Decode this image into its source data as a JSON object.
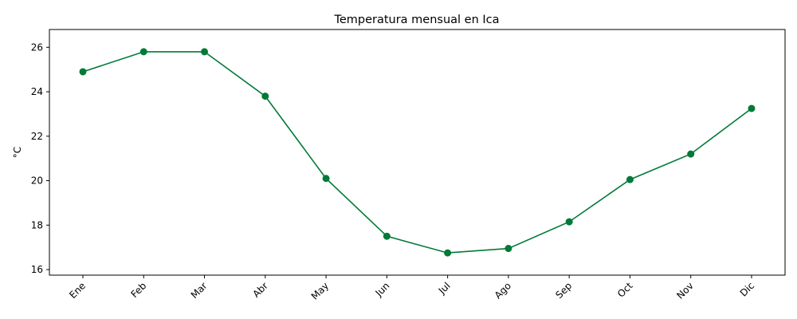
{
  "chart_data": {
    "type": "line",
    "title": "Temperatura mensual en Ica",
    "xlabel": "",
    "ylabel": "°C",
    "categories": [
      "Ene",
      "Feb",
      "Mar",
      "Abr",
      "May",
      "Jun",
      "Jul",
      "Ago",
      "Sep",
      "Oct",
      "Nov",
      "Dic"
    ],
    "series": [
      {
        "values": [
          24.9,
          25.8,
          25.8,
          23.8,
          20.1,
          17.5,
          16.75,
          16.95,
          18.15,
          20.05,
          21.2,
          23.25
        ],
        "color": "#007a37",
        "marker": "circle"
      }
    ],
    "ylim": [
      15.75,
      26.8
    ],
    "yticks": [
      16,
      18,
      20,
      22,
      24,
      26
    ],
    "grid": false,
    "legend": "none"
  }
}
